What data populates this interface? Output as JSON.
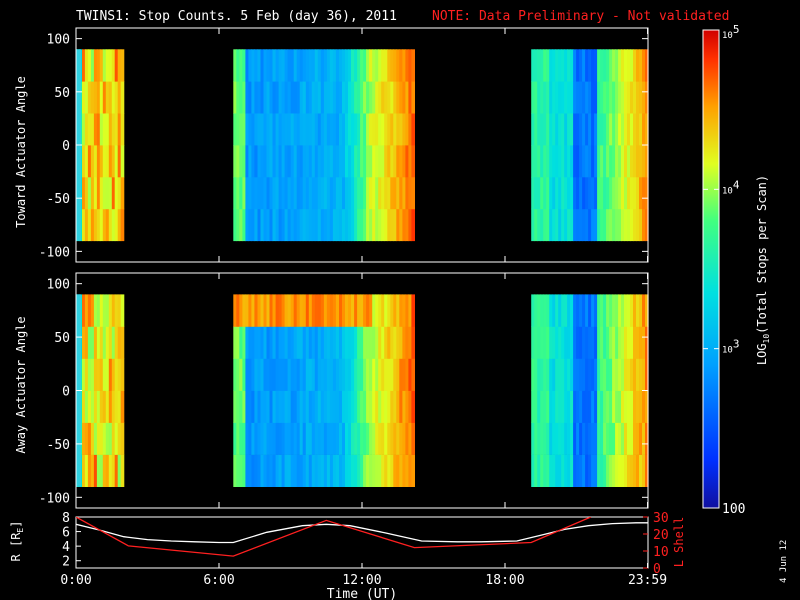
{
  "title": {
    "main": "TWINS1: Stop Counts.  5 Feb (day  36), 2011",
    "note": "NOTE: Data Preliminary - Not validated",
    "note_color": "#ff2020"
  },
  "side_date": "4 Jun 12",
  "chart_data": [
    {
      "type": "heatmap",
      "name": "toward",
      "ylabel": "Toward Actuator Angle",
      "ylim": [
        -110,
        110
      ],
      "yticks": [
        100,
        50,
        0,
        -50,
        -100
      ],
      "xlim": [
        0,
        24
      ],
      "data_y_range": [
        -90,
        90
      ],
      "coverage_hours": [
        [
          0,
          2.0
        ],
        [
          6.6,
          14.2
        ],
        [
          19.1,
          24
        ]
      ],
      "rows": [],
      "row_note": ""
    },
    {
      "type": "heatmap",
      "name": "away",
      "ylabel": "Away Actuator Angle",
      "ylim": [
        -110,
        110
      ],
      "yticks": [
        100,
        50,
        0,
        -50,
        -100
      ],
      "xlim": [
        0,
        24
      ],
      "data_y_range": [
        -90,
        90
      ],
      "coverage_hours": [
        [
          0,
          2.0
        ],
        [
          6.6,
          14.2
        ],
        [
          19.1,
          24
        ]
      ]
    },
    {
      "type": "line",
      "name": "orbit",
      "xlabel": "Time (UT)",
      "xticks": [
        "0:00",
        "6:00",
        "12:00",
        "18:00",
        "23:59"
      ],
      "xtick_hours": [
        0,
        6,
        12,
        18,
        23.98
      ],
      "left_axis": {
        "label": "R [R",
        "label_sub": "E",
        "label_end": "]",
        "ylim": [
          1,
          8
        ],
        "yticks": [
          2,
          4,
          6,
          8
        ],
        "color": "#ffffff"
      },
      "right_axis": {
        "label": "L Shell",
        "ylim": [
          0,
          30
        ],
        "yticks": [
          0,
          10,
          20,
          30
        ],
        "color": "#ff2020"
      },
      "series": [
        {
          "axis": "left",
          "color": "#ffffff",
          "x": [
            0,
            1,
            2,
            3,
            4,
            5,
            6,
            6.6,
            8,
            9.5,
            10.5,
            11.5,
            13,
            14.5,
            16,
            17,
            18.5,
            19.5,
            20.5,
            21.5,
            22.5,
            23.5,
            24
          ],
          "y": [
            7.0,
            6.2,
            5.3,
            4.9,
            4.7,
            4.6,
            4.5,
            4.5,
            5.9,
            6.8,
            7.0,
            6.8,
            5.8,
            4.7,
            4.6,
            4.6,
            4.7,
            5.5,
            6.3,
            6.8,
            7.1,
            7.2,
            7.2
          ]
        },
        {
          "axis": "right",
          "color": "#ff2020",
          "x": [
            0,
            2.2,
            6.6,
            10.5,
            14.2,
            19.1,
            21.6
          ],
          "y": [
            30,
            13,
            7,
            28,
            12,
            15,
            30
          ]
        }
      ]
    }
  ],
  "colorbar": {
    "label_pre": "LOG",
    "label_sub": "10",
    "label_post": "(Total Stops per Scan)",
    "ticks": [
      {
        "value": 100,
        "label": "100",
        "exp": ""
      },
      {
        "value": 1000,
        "label": "10",
        "exp": "3"
      },
      {
        "value": 10000,
        "label": "10",
        "exp": "4"
      },
      {
        "value": 100000,
        "label": "10",
        "exp": "5"
      }
    ],
    "range": [
      100,
      100000
    ],
    "scale": "log"
  }
}
